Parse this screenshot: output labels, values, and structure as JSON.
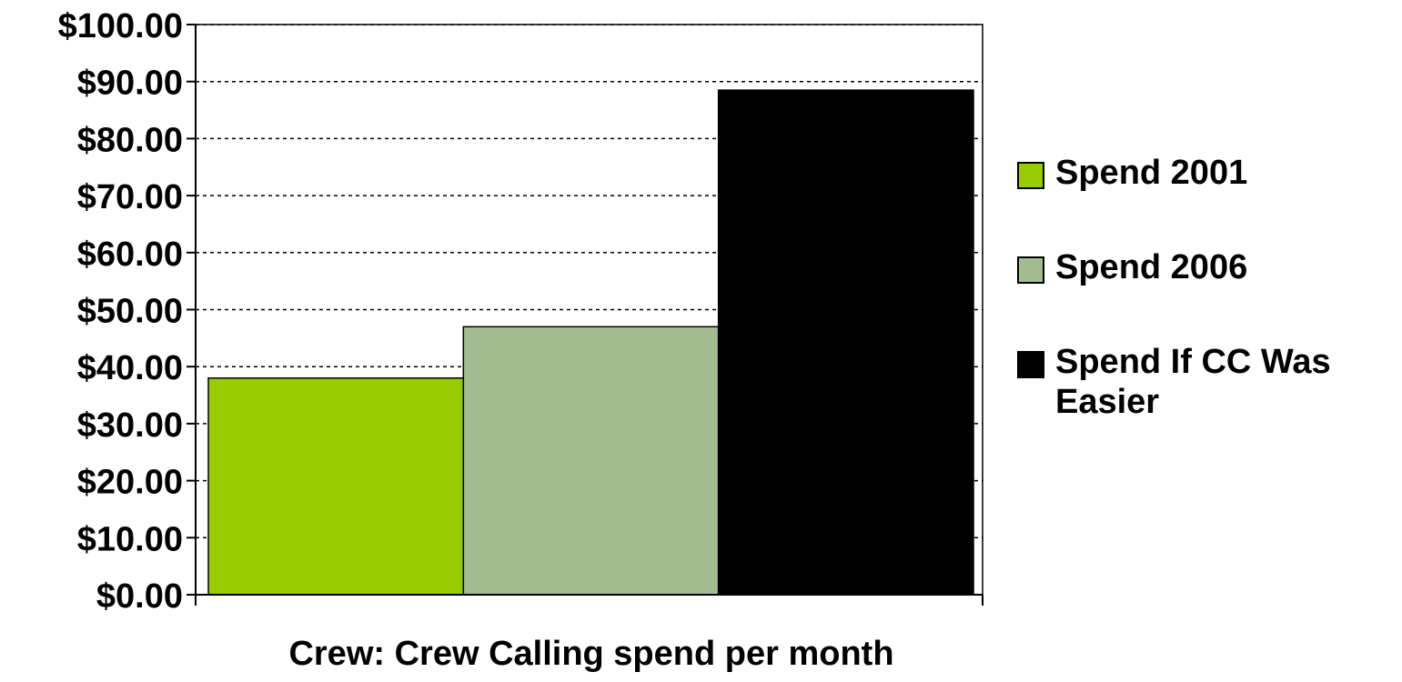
{
  "chart_data": {
    "type": "bar",
    "title": "",
    "xlabel": "Crew: Crew Calling spend per month",
    "ylabel": "",
    "ylim": [
      0,
      100
    ],
    "yticks": [
      "$0.00",
      "$10.00",
      "$20.00",
      "$30.00",
      "$40.00",
      "$50.00",
      "$60.00",
      "$70.00",
      "$80.00",
      "$90.00",
      "$100.00"
    ],
    "grid": true,
    "legend_position": "right",
    "categories": [
      ""
    ],
    "series": [
      {
        "name": "Spend 2001",
        "values": [
          38
        ],
        "color": "#99cc00"
      },
      {
        "name": "Spend 2006",
        "values": [
          47
        ],
        "color": "#a3bd91"
      },
      {
        "name": "Spend If CC Was Easier",
        "values": [
          88.5
        ],
        "color": "#000000"
      }
    ]
  }
}
